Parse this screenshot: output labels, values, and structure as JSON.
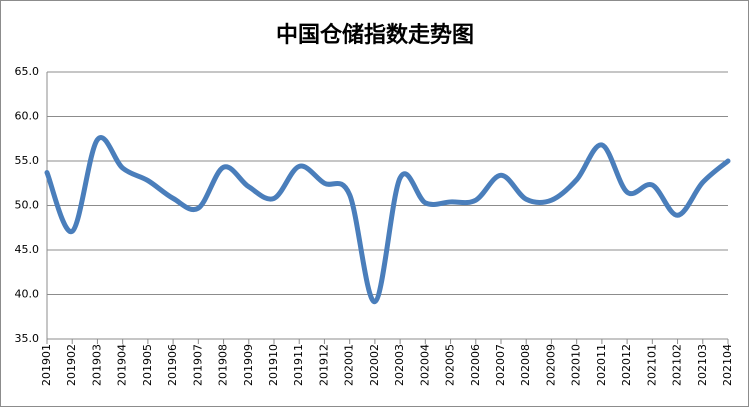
{
  "chart_data": {
    "type": "line",
    "title": "中国仓储指数走势图",
    "categories": [
      "201901",
      "201902",
      "201903",
      "201904",
      "201905",
      "201906",
      "201907",
      "201908",
      "201909",
      "201910",
      "201911",
      "201912",
      "202001",
      "202002",
      "202003",
      "202004",
      "202005",
      "202006",
      "202007",
      "202008",
      "202009",
      "202010",
      "202011",
      "202012",
      "202101",
      "202102",
      "202103",
      "202104"
    ],
    "series": [
      {
        "name": "中国仓储指数",
        "color": "#4a7ebb",
        "values": [
          53.7,
          47.1,
          57.4,
          54.2,
          52.8,
          50.8,
          49.7,
          54.3,
          52.1,
          50.8,
          54.4,
          52.5,
          51.2,
          39.2,
          53.1,
          50.3,
          50.4,
          50.6,
          53.4,
          50.7,
          50.6,
          52.9,
          56.8,
          51.5,
          52.3,
          48.9,
          52.6,
          55.0
        ]
      }
    ],
    "ylim": [
      35,
      65
    ],
    "yticks": [
      {
        "value": 35,
        "label": "35.0"
      },
      {
        "value": 40,
        "label": "40.0"
      },
      {
        "value": 45,
        "label": "45.0"
      },
      {
        "value": 50,
        "label": "50.0"
      },
      {
        "value": 55,
        "label": "55.0"
      },
      {
        "value": 60,
        "label": "60.0"
      },
      {
        "value": 65,
        "label": "65.0"
      }
    ],
    "grid": true
  }
}
